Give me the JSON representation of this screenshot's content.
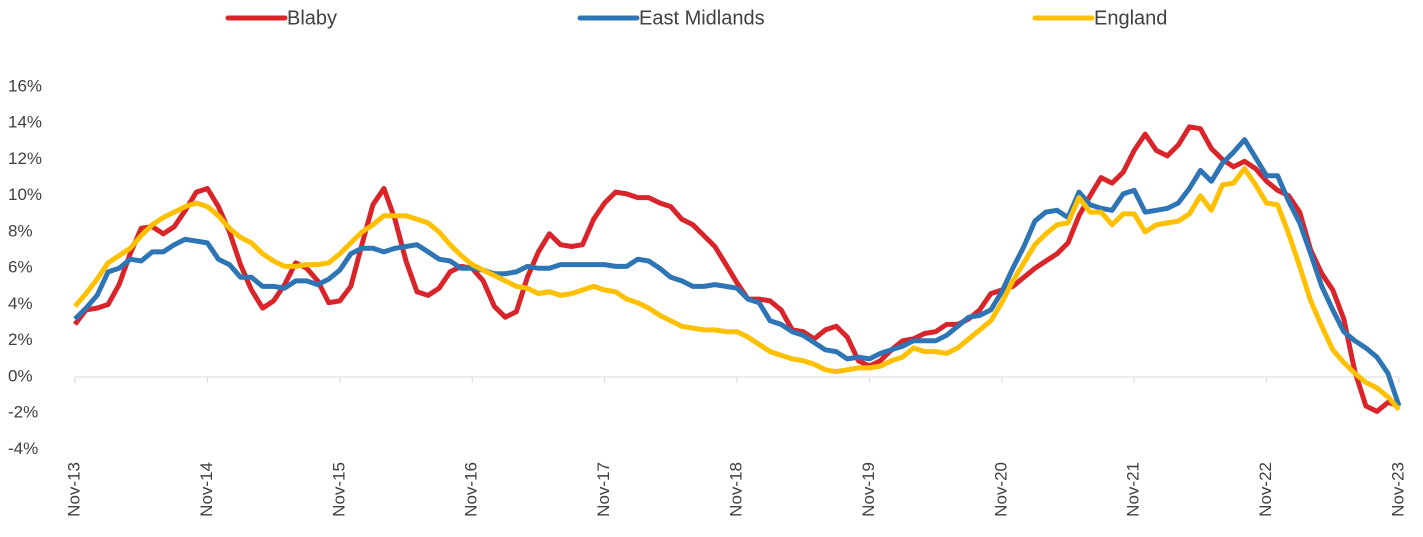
{
  "chart_data": {
    "type": "line",
    "categories": [
      "Nov-13",
      null,
      null,
      null,
      null,
      null,
      null,
      null,
      null,
      null,
      null,
      null,
      "Nov-14",
      null,
      null,
      null,
      null,
      null,
      null,
      null,
      null,
      null,
      null,
      null,
      "Nov-15",
      null,
      null,
      null,
      null,
      null,
      null,
      null,
      null,
      null,
      null,
      null,
      "Nov-16",
      null,
      null,
      null,
      null,
      null,
      null,
      null,
      null,
      null,
      null,
      null,
      "Nov-17",
      null,
      null,
      null,
      null,
      null,
      null,
      null,
      null,
      null,
      null,
      null,
      "Nov-18",
      null,
      null,
      null,
      null,
      null,
      null,
      null,
      null,
      null,
      null,
      null,
      "Nov-19",
      null,
      null,
      null,
      null,
      null,
      null,
      null,
      null,
      null,
      null,
      null,
      "Nov-20",
      null,
      null,
      null,
      null,
      null,
      null,
      null,
      null,
      null,
      null,
      null,
      "Nov-21",
      null,
      null,
      null,
      null,
      null,
      null,
      null,
      null,
      null,
      null,
      null,
      "Nov-22",
      null,
      null,
      null,
      null,
      null,
      null,
      null,
      null,
      null,
      null,
      null,
      "Nov-23"
    ],
    "series": [
      {
        "name": "Blaby",
        "color": "#d9242a",
        "values": [
          2.9,
          3.7,
          3.8,
          4.0,
          5.1,
          6.8,
          8.2,
          8.3,
          7.9,
          8.3,
          9.2,
          10.2,
          10.4,
          9.4,
          8.0,
          6.2,
          4.8,
          3.8,
          4.2,
          5.1,
          6.3,
          6.0,
          5.3,
          4.1,
          4.2,
          5.0,
          7.3,
          9.5,
          10.4,
          8.7,
          6.4,
          4.7,
          4.5,
          4.9,
          5.8,
          6.1,
          6.0,
          5.3,
          3.9,
          3.3,
          3.6,
          5.5,
          6.9,
          7.9,
          7.3,
          7.2,
          7.3,
          8.7,
          9.6,
          10.2,
          10.1,
          9.9,
          9.9,
          9.6,
          9.4,
          8.7,
          8.4,
          7.8,
          7.2,
          6.2,
          5.2,
          4.3,
          4.3,
          4.2,
          3.7,
          2.6,
          2.5,
          2.1,
          2.6,
          2.8,
          2.2,
          0.9,
          0.6,
          0.9,
          1.5,
          2.0,
          2.1,
          2.4,
          2.5,
          2.9,
          2.9,
          3.2,
          3.7,
          4.6,
          4.8,
          5.0,
          5.5,
          6.0,
          6.4,
          6.8,
          7.4,
          8.9,
          10.0,
          11.0,
          10.7,
          11.3,
          12.5,
          13.4,
          12.5,
          12.2,
          12.8,
          13.8,
          13.7,
          12.6,
          12.0,
          11.6,
          11.9,
          11.5,
          10.8,
          10.3,
          10.0,
          9.1,
          7.0,
          5.7,
          4.8,
          3.2,
          0.3,
          -1.6,
          -1.9,
          -1.4,
          -1.6
        ]
      },
      {
        "name": "East Midlands",
        "color": "#2e75b6",
        "values": [
          3.2,
          3.8,
          4.5,
          5.8,
          6.0,
          6.5,
          6.4,
          6.9,
          6.9,
          7.3,
          7.6,
          7.5,
          7.4,
          6.5,
          6.2,
          5.5,
          5.5,
          5.0,
          5.0,
          4.9,
          5.3,
          5.3,
          5.1,
          5.4,
          5.9,
          6.8,
          7.1,
          7.1,
          6.9,
          7.1,
          7.2,
          7.3,
          6.9,
          6.5,
          6.4,
          6.0,
          6.0,
          5.9,
          5.7,
          5.7,
          5.8,
          6.1,
          6.0,
          6.0,
          6.2,
          6.2,
          6.2,
          6.2,
          6.2,
          6.1,
          6.1,
          6.5,
          6.4,
          6.0,
          5.5,
          5.3,
          5.0,
          5.0,
          5.1,
          5.0,
          4.9,
          4.3,
          4.1,
          3.1,
          2.9,
          2.5,
          2.3,
          1.9,
          1.5,
          1.4,
          1.0,
          1.1,
          1.0,
          1.3,
          1.5,
          1.7,
          2.0,
          2.0,
          2.0,
          2.3,
          2.8,
          3.3,
          3.4,
          3.7,
          4.7,
          6.0,
          7.2,
          8.6,
          9.1,
          9.2,
          8.8,
          10.2,
          9.5,
          9.3,
          9.2,
          10.1,
          10.3,
          9.1,
          9.2,
          9.3,
          9.6,
          10.4,
          11.4,
          10.8,
          11.8,
          12.4,
          13.1,
          12.1,
          11.1,
          11.1,
          9.7,
          8.5,
          6.8,
          5.0,
          3.7,
          2.5,
          2.0,
          1.6,
          1.1,
          0.2,
          -1.6
        ]
      },
      {
        "name": "England",
        "color": "#ffc000",
        "values": [
          3.9,
          4.6,
          5.4,
          6.3,
          6.7,
          7.1,
          7.8,
          8.4,
          8.8,
          9.1,
          9.4,
          9.6,
          9.4,
          8.9,
          8.2,
          7.7,
          7.4,
          6.8,
          6.4,
          6.1,
          6.1,
          6.2,
          6.2,
          6.3,
          6.8,
          7.4,
          8.0,
          8.4,
          8.9,
          8.9,
          8.9,
          8.7,
          8.5,
          8.0,
          7.3,
          6.7,
          6.2,
          5.9,
          5.6,
          5.3,
          5.0,
          4.9,
          4.6,
          4.7,
          4.5,
          4.6,
          4.8,
          5.0,
          4.8,
          4.7,
          4.3,
          4.1,
          3.8,
          3.4,
          3.1,
          2.8,
          2.7,
          2.6,
          2.6,
          2.5,
          2.5,
          2.2,
          1.8,
          1.4,
          1.2,
          1.0,
          0.9,
          0.7,
          0.4,
          0.3,
          0.4,
          0.5,
          0.5,
          0.6,
          0.9,
          1.1,
          1.6,
          1.4,
          1.4,
          1.3,
          1.6,
          2.1,
          2.6,
          3.1,
          4.1,
          5.3,
          6.3,
          7.3,
          7.9,
          8.4,
          8.5,
          9.9,
          9.1,
          9.1,
          8.4,
          9.0,
          9.0,
          8.0,
          8.4,
          8.5,
          8.6,
          9.0,
          10.0,
          9.2,
          10.6,
          10.7,
          11.5,
          10.6,
          9.6,
          9.5,
          7.9,
          6.1,
          4.2,
          2.8,
          1.5,
          0.8,
          0.2,
          -0.3,
          -0.6,
          -1.1,
          -1.8
        ]
      }
    ],
    "ylim": [
      -4,
      16
    ],
    "yticks": [
      {
        "value": -4,
        "label": "-4%"
      },
      {
        "value": -2,
        "label": "-2%"
      },
      {
        "value": 0,
        "label": "0%"
      },
      {
        "value": 2,
        "label": "2%"
      },
      {
        "value": 4,
        "label": "4%"
      },
      {
        "value": 6,
        "label": "6%"
      },
      {
        "value": 8,
        "label": "8%"
      },
      {
        "value": 10,
        "label": "10%"
      },
      {
        "value": 12,
        "label": "12%"
      },
      {
        "value": 14,
        "label": "14%"
      },
      {
        "value": 16,
        "label": "16%"
      }
    ],
    "grid": false,
    "legend": "top"
  }
}
